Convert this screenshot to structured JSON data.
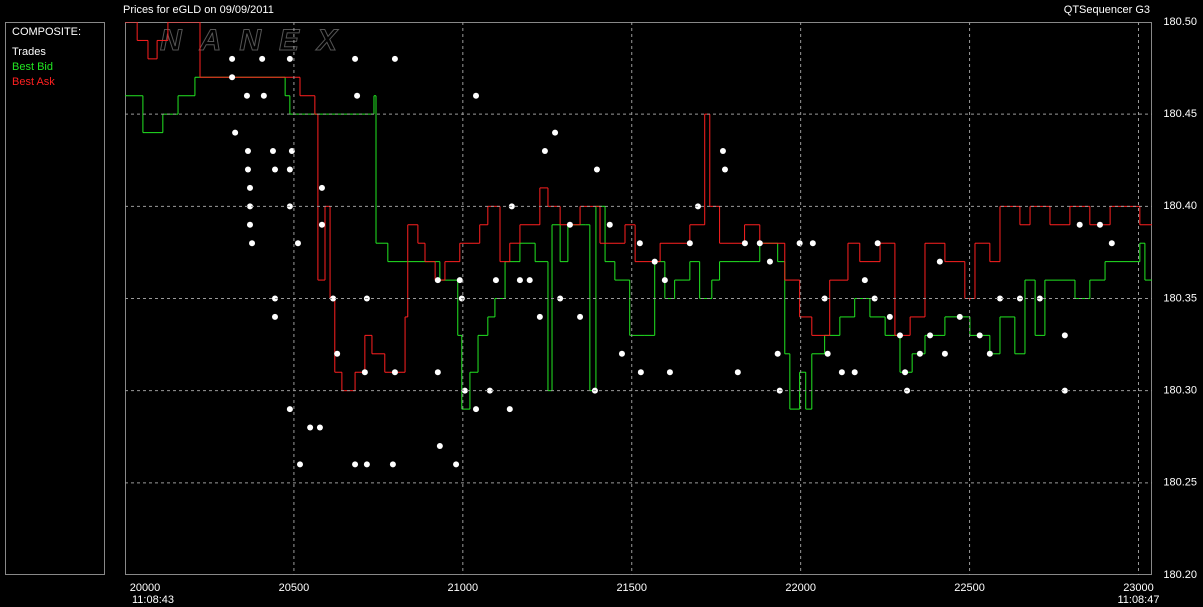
{
  "chart_data": {
    "type": "line",
    "title": "Prices for  eGLD  on  09/09/2011",
    "source": "QTSequencer G3",
    "watermark": "NANEX",
    "legend_title": "COMPOSITE:",
    "xlim": [
      20000,
      23040
    ],
    "xticks": [
      20000,
      20500,
      21000,
      21500,
      22000,
      22500,
      23000
    ],
    "time_labels": [
      {
        "value": 20000,
        "label": "11:08:43"
      },
      {
        "value": 23000,
        "label": "11:08:47"
      }
    ],
    "ylim": [
      180.2,
      180.5
    ],
    "yticks": [
      {
        "value": 180.2,
        "label": "180.20"
      },
      180.25,
      {
        "value": 180.3,
        "label": "180.30"
      },
      180.35,
      {
        "value": 180.4,
        "label": "180.40"
      },
      180.45,
      {
        "value": 180.5,
        "label": "180.50"
      }
    ],
    "grid": true,
    "series": [
      {
        "name": "Trades",
        "color": "#ffffff",
        "style": "dots",
        "x": [
          20317,
          20317,
          20361,
          20326,
          20364,
          20364,
          20370,
          20370,
          20370,
          20376,
          20406,
          20411,
          20438,
          20444,
          20444,
          20444,
          20488,
          20494,
          20488,
          20488,
          20488,
          20512,
          20518,
          20548,
          20577,
          20583,
          20583,
          20616,
          20628,
          20681,
          20681,
          20687,
          20716,
          20716,
          20710,
          20793,
          20799,
          20799,
          20932,
          20926,
          20926,
          20980,
          20991,
          20997,
          21006,
          21039,
          21039,
          21080,
          21098,
          21139,
          21145,
          21169,
          21198,
          21228,
          21243,
          21273,
          21288,
          21317,
          21347,
          21391,
          21397,
          21435,
          21471,
          21524,
          21527,
          21568,
          21598,
          21613,
          21672,
          21696,
          21770,
          21776,
          21814,
          21835,
          21879,
          21909,
          21932,
          21938,
          21997,
          22036,
          22071,
          22080,
          22122,
          22160,
          22190,
          22219,
          22228,
          22264,
          22294,
          22309,
          22315,
          22353,
          22383,
          22412,
          22427,
          22471,
          22530,
          22560,
          22590,
          22649,
          22708,
          22782,
          22782,
          22826,
          22886,
          22921
        ],
        "values": [
          180.48,
          180.47,
          180.46,
          180.44,
          180.43,
          180.42,
          180.41,
          180.4,
          180.39,
          180.38,
          180.48,
          180.46,
          180.43,
          180.42,
          180.35,
          180.34,
          180.48,
          180.43,
          180.42,
          180.4,
          180.29,
          180.38,
          180.26,
          180.28,
          180.28,
          180.41,
          180.39,
          180.35,
          180.32,
          180.26,
          180.48,
          180.46,
          180.26,
          180.35,
          180.31,
          180.26,
          180.48,
          180.31,
          180.27,
          180.31,
          180.36,
          180.26,
          180.36,
          180.35,
          180.3,
          180.29,
          180.46,
          180.3,
          180.36,
          180.29,
          180.4,
          180.36,
          180.36,
          180.34,
          180.43,
          180.44,
          180.35,
          180.39,
          180.34,
          180.3,
          180.42,
          180.39,
          180.32,
          180.38,
          180.31,
          180.37,
          180.36,
          180.31,
          180.38,
          180.4,
          180.43,
          180.42,
          180.31,
          180.38,
          180.38,
          180.37,
          180.32,
          180.3,
          180.38,
          180.38,
          180.35,
          180.32,
          180.31,
          180.31,
          180.36,
          180.35,
          180.38,
          180.34,
          180.33,
          180.31,
          180.3,
          180.32,
          180.33,
          180.37,
          180.32,
          180.34,
          180.33,
          180.32,
          180.35,
          180.35,
          180.35,
          180.3,
          180.33,
          180.39,
          180.39,
          180.38
        ]
      },
      {
        "name": "Best Bid",
        "color": "#22e622",
        "style": "step",
        "x": [
          20000,
          20053,
          20112,
          20157,
          20207,
          20474,
          20488,
          20737,
          20743,
          20778,
          20932,
          20985,
          20997,
          21021,
          21045,
          21074,
          21095,
          21125,
          21169,
          21214,
          21252,
          21264,
          21288,
          21311,
          21362,
          21376,
          21394,
          21421,
          21450,
          21494,
          21539,
          21568,
          21598,
          21627,
          21672,
          21701,
          21737,
          21760,
          21820,
          21879,
          21932,
          21953,
          21968,
          21997,
          22015,
          22033,
          22071,
          22116,
          22160,
          22205,
          22250,
          22294,
          22330,
          22368,
          22427,
          22501,
          22560,
          22590,
          22634,
          22664,
          22694,
          22723,
          22812,
          22856,
          22901,
          23004,
          23019,
          23040
        ],
        "values": [
          180.46,
          180.44,
          180.45,
          180.46,
          180.47,
          180.46,
          180.45,
          180.46,
          180.38,
          180.37,
          180.36,
          180.33,
          180.29,
          180.31,
          180.33,
          180.34,
          180.35,
          180.37,
          180.38,
          180.37,
          180.3,
          180.39,
          180.37,
          180.39,
          180.39,
          180.3,
          180.4,
          180.37,
          180.36,
          180.33,
          180.33,
          180.37,
          180.35,
          180.36,
          180.37,
          180.35,
          180.36,
          180.37,
          180.37,
          180.38,
          180.37,
          180.32,
          180.29,
          180.31,
          180.29,
          180.32,
          180.33,
          180.34,
          180.35,
          180.34,
          180.33,
          180.31,
          180.32,
          180.33,
          180.34,
          180.33,
          180.32,
          180.34,
          180.32,
          180.36,
          180.33,
          180.36,
          180.35,
          180.36,
          180.37,
          180.38,
          180.36,
          180.36
        ]
      },
      {
        "name": "Best Ask",
        "color": "#ff2020",
        "style": "step",
        "x": [
          20000,
          20036,
          20068,
          20095,
          20127,
          20222,
          20518,
          20562,
          20571,
          20592,
          20607,
          20621,
          20642,
          20681,
          20710,
          20731,
          20769,
          20829,
          20837,
          20867,
          20888,
          20918,
          20947,
          20991,
          21050,
          21074,
          21110,
          21139,
          21169,
          21228,
          21252,
          21288,
          21347,
          21406,
          21480,
          21510,
          21584,
          21672,
          21716,
          21731,
          21760,
          21834,
          21879,
          21953,
          21997,
          22033,
          22086,
          22140,
          22175,
          22235,
          22279,
          22324,
          22368,
          22427,
          22486,
          22516,
          22560,
          22590,
          22649,
          22679,
          22738,
          22797,
          22856,
          22916,
          23004,
          23040
        ],
        "values": [
          180.5,
          180.49,
          180.48,
          180.49,
          180.5,
          180.47,
          180.46,
          180.45,
          180.36,
          180.4,
          180.35,
          180.31,
          180.3,
          180.31,
          180.33,
          180.32,
          180.31,
          180.34,
          180.39,
          180.38,
          180.37,
          180.36,
          180.37,
          180.38,
          180.39,
          180.4,
          180.37,
          180.38,
          180.39,
          180.41,
          180.4,
          180.39,
          180.4,
          180.38,
          180.39,
          180.37,
          180.38,
          180.39,
          180.45,
          180.4,
          180.38,
          180.39,
          180.38,
          180.36,
          180.34,
          180.33,
          180.36,
          180.38,
          180.37,
          180.38,
          180.33,
          180.34,
          180.38,
          180.37,
          180.35,
          180.38,
          180.37,
          180.4,
          180.39,
          180.4,
          180.39,
          180.4,
          180.39,
          180.4,
          180.39,
          180.39
        ]
      }
    ]
  }
}
